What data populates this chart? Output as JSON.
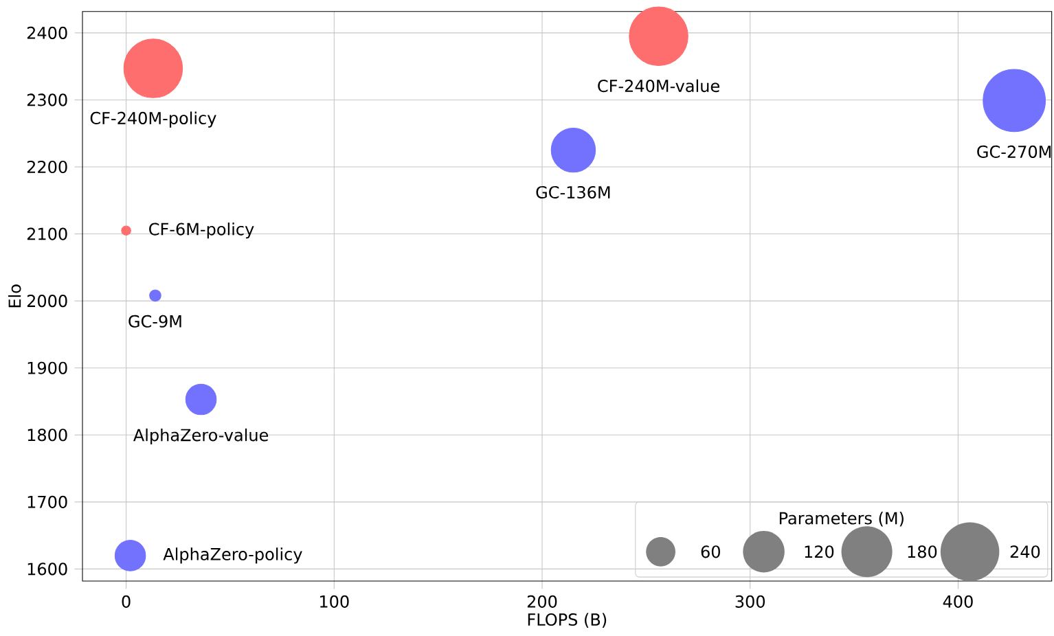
{
  "chart_data": {
    "type": "bubble",
    "xlabel": "FLOPS (B)",
    "ylabel": "Elo",
    "xlim": [
      -21,
      445
    ],
    "ylim": [
      1582,
      2432
    ],
    "xticks": [
      0,
      100,
      200,
      300,
      400
    ],
    "yticks": [
      1600,
      1700,
      1800,
      1900,
      2000,
      2100,
      2200,
      2300,
      2400
    ],
    "grid": true,
    "legend_title": "Parameters (M)",
    "size_legend": [
      60,
      120,
      180,
      240
    ],
    "series": [
      {
        "color": "#ff6e6e",
        "x": [
          13,
          256,
          0
        ],
        "values": [
          2347,
          2395,
          2105
        ],
        "sizes": [
          240,
          240,
          6
        ]
      },
      {
        "color": "#7272ff",
        "x": [
          427,
          215,
          14,
          36,
          2
        ],
        "values": [
          2299,
          2225,
          2008,
          1853,
          1620
        ],
        "sizes": [
          270,
          136,
          9,
          65,
          65
        ]
      }
    ],
    "annotations": [
      {
        "text": "CF-240M-policy",
        "x": 13,
        "y": 2347
      },
      {
        "text": "CF-240M-value",
        "x": 256,
        "y": 2395
      },
      {
        "text": "GC-270M",
        "x": 427,
        "y": 2299
      },
      {
        "text": "GC-136M",
        "x": 215,
        "y": 2225
      },
      {
        "text": "CF-6M-policy",
        "x": 0,
        "y": 2105
      },
      {
        "text": "GC-9M",
        "x": 14,
        "y": 2008
      },
      {
        "text": "AlphaZero-value",
        "x": 36,
        "y": 1853
      },
      {
        "text": "AlphaZero-policy",
        "x": 2,
        "y": 1620
      }
    ]
  }
}
